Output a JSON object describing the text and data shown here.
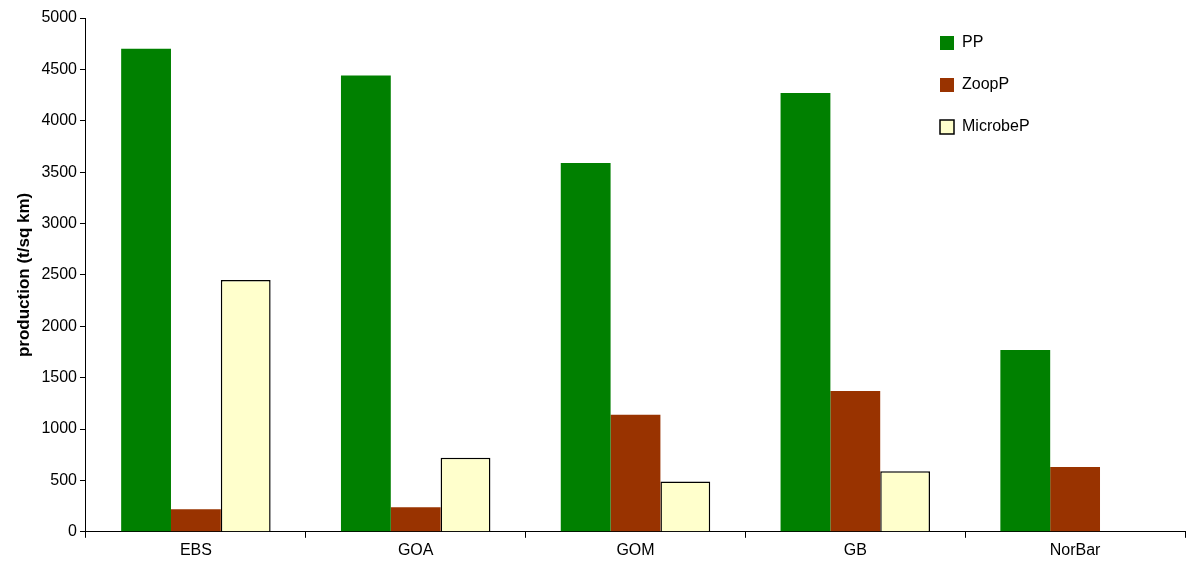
{
  "chart_data": {
    "type": "bar",
    "ylabel": "production (t/sq km)",
    "categories": [
      "EBS",
      "GOA",
      "GOM",
      "GB",
      "NorBar"
    ],
    "series": [
      {
        "name": "PP",
        "color": "#008000",
        "values": [
          4700,
          4440,
          3590,
          4270,
          1770
        ]
      },
      {
        "name": "ZoopP",
        "color": "#993300",
        "values": [
          220,
          240,
          1140,
          1370,
          630
        ]
      },
      {
        "name": "MicrobeP",
        "color": "#ffffcc",
        "values": [
          2450,
          720,
          490,
          590,
          null
        ]
      }
    ],
    "ylim": [
      0,
      5000
    ],
    "yticks": [
      0,
      500,
      1000,
      1500,
      2000,
      2500,
      3000,
      3500,
      4000,
      4500,
      5000
    ],
    "grid": false,
    "legend": "top right"
  }
}
